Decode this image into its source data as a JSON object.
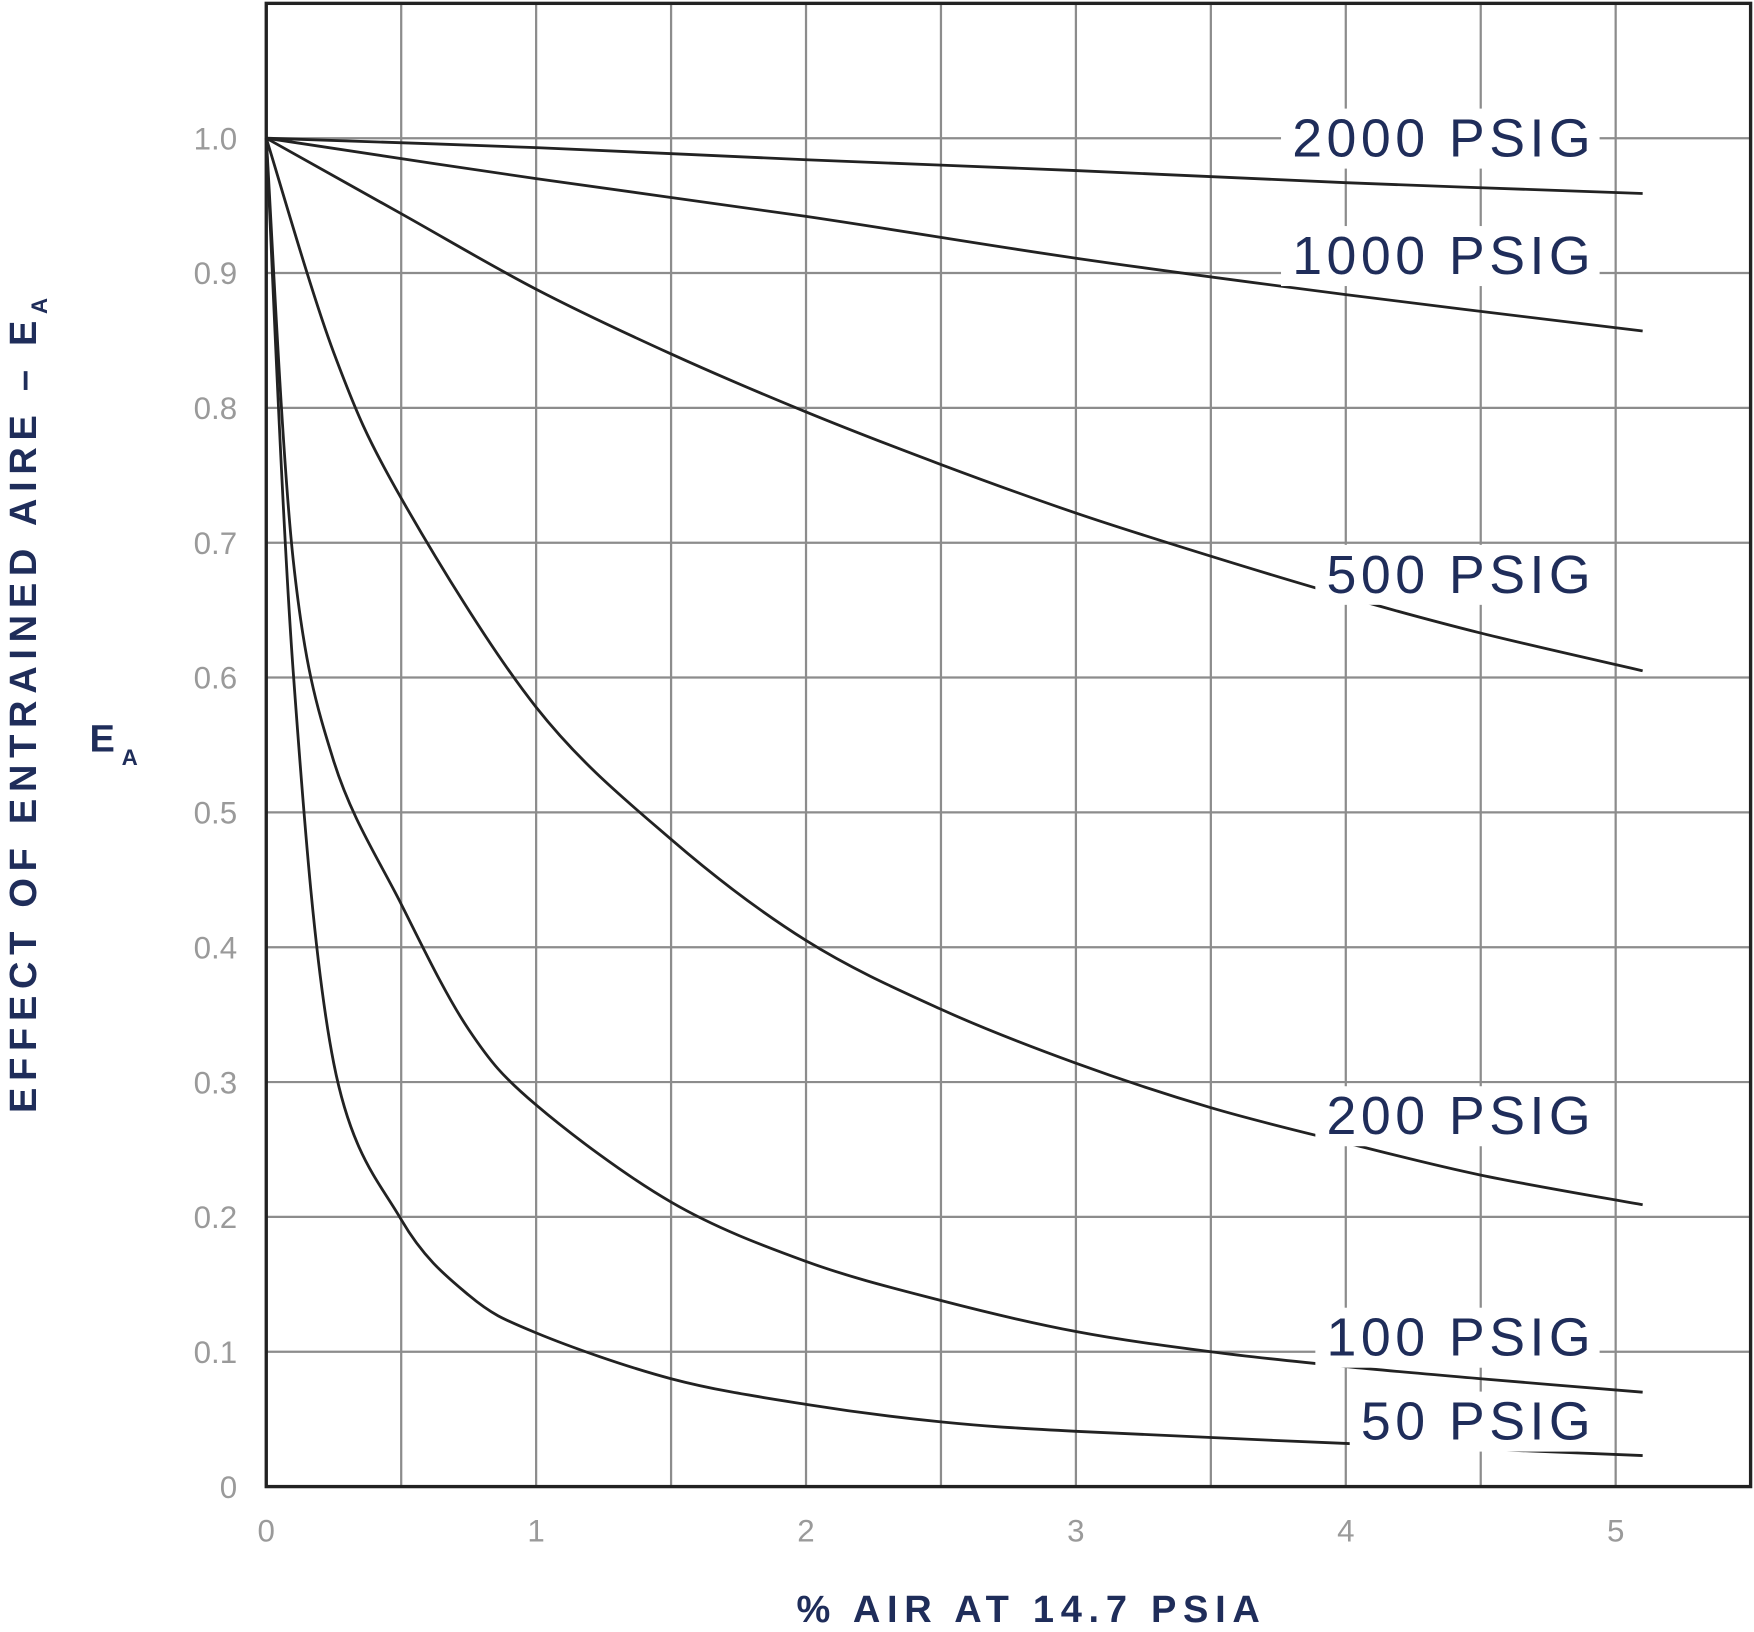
{
  "chart_data": {
    "type": "line",
    "xlabel": "% AIR AT 14.7 PSIA",
    "ylabel": {
      "text": "EFFECT OF ENTRAINED AIRE – E",
      "sub": "A"
    },
    "annotation": {
      "text": "E",
      "sub": "A"
    },
    "xlim": [
      0,
      5.5
    ],
    "ylim": [
      0,
      1.1
    ],
    "xticks": [
      0,
      1,
      2,
      3,
      4,
      5
    ],
    "xgrid": [
      0.5,
      1,
      1.5,
      2,
      2.5,
      3,
      3.5,
      4,
      4.5,
      5
    ],
    "yticks": [
      0,
      0.1,
      0.2,
      0.3,
      0.4,
      0.5,
      0.6,
      0.7,
      0.8,
      0.9,
      {
        "value": 1,
        "label": "1.0"
      }
    ],
    "grid": true,
    "series": [
      {
        "name": "2000 PSIG",
        "color": "#222222",
        "x": [
          0,
          1,
          2,
          3,
          4,
          5.1
        ],
        "values": [
          1,
          0.993,
          0.984,
          0.976,
          0.967,
          0.959
        ]
      },
      {
        "name": "1000 PSIG",
        "color": "#222222",
        "x": [
          0,
          1,
          2,
          3,
          4,
          5.1
        ],
        "values": [
          1,
          0.97,
          0.942,
          0.911,
          0.884,
          0.857
        ]
      },
      {
        "name": "500 PSIG",
        "color": "#222222",
        "x": [
          0,
          0.5,
          1,
          1.5,
          2,
          2.5,
          3,
          3.5,
          4,
          4.5,
          5.1
        ],
        "values": [
          1,
          0.944,
          0.888,
          0.84,
          0.797,
          0.758,
          0.722,
          0.69,
          0.66,
          0.633,
          0.605
        ]
      },
      {
        "name": "200 PSIG",
        "color": "#222222",
        "x": [
          0,
          0.25,
          0.5,
          1,
          1.5,
          2,
          2.5,
          3,
          3.5,
          4,
          4.5,
          5.1
        ],
        "values": [
          1,
          0.841,
          0.733,
          0.578,
          0.48,
          0.405,
          0.354,
          0.314,
          0.281,
          0.255,
          0.231,
          0.209
        ]
      },
      {
        "name": "100 PSIG",
        "color": "#222222",
        "x": [
          0,
          0.1,
          0.25,
          0.5,
          0.75,
          1,
          1.5,
          2,
          2.5,
          3,
          3.5,
          4,
          4.5,
          5.1
        ],
        "values": [
          1,
          0.687,
          0.538,
          0.432,
          0.339,
          0.283,
          0.211,
          0.167,
          0.138,
          0.115,
          0.1,
          0.089,
          0.08,
          0.07
        ]
      },
      {
        "name": "50 PSIG",
        "color": "#222222",
        "x": [
          0,
          0.1,
          0.25,
          0.5,
          0.75,
          1,
          1.5,
          2,
          2.5,
          3,
          4,
          5.1
        ],
        "values": [
          1,
          0.604,
          0.314,
          0.198,
          0.142,
          0.114,
          0.08,
          0.061,
          0.048,
          0.041,
          0.032,
          0.023
        ]
      }
    ]
  }
}
